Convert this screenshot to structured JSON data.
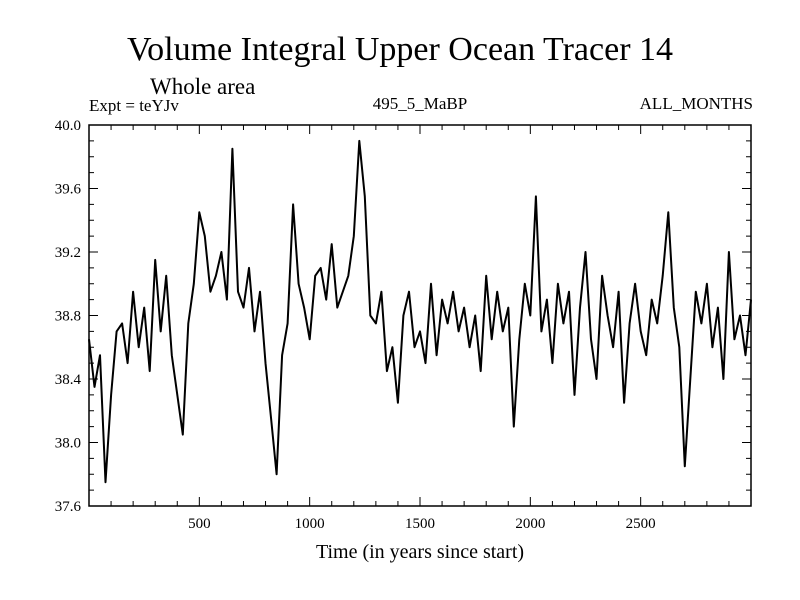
{
  "chart_data": {
    "type": "line",
    "title": "Volume Integral Upper Ocean Tracer 14",
    "subtitle": "Whole area",
    "experiment_label": "Expt = teYJv",
    "run_label": "495_5_MaBP",
    "months_label": "ALL_MONTHS",
    "xlabel": "Time (in years since start)",
    "ylabel": "",
    "xlim": [
      0,
      3000
    ],
    "ylim": [
      37.6,
      40.0
    ],
    "x_ticks": [
      500,
      1000,
      1500,
      2000,
      2500
    ],
    "x_tick_labels": [
      "500",
      "1000",
      "1500",
      "2000",
      "2500"
    ],
    "y_ticks": [
      37.6,
      38.0,
      38.4,
      38.8,
      39.2,
      39.6,
      40.0
    ],
    "y_tick_labels": [
      "37.6",
      "38.0",
      "38.4",
      "38.8",
      "39.2",
      "39.6",
      "40.0"
    ],
    "series": [
      {
        "name": "Upper Ocean Tracer 14",
        "x": [
          0,
          25,
          50,
          75,
          100,
          125,
          150,
          175,
          200,
          225,
          250,
          275,
          300,
          325,
          350,
          375,
          400,
          425,
          450,
          475,
          500,
          525,
          550,
          575,
          600,
          625,
          650,
          675,
          700,
          725,
          750,
          775,
          800,
          825,
          850,
          875,
          900,
          925,
          950,
          975,
          1000,
          1025,
          1050,
          1075,
          1100,
          1125,
          1150,
          1175,
          1200,
          1225,
          1250,
          1275,
          1300,
          1325,
          1350,
          1375,
          1400,
          1425,
          1450,
          1475,
          1500,
          1525,
          1550,
          1575,
          1600,
          1625,
          1650,
          1675,
          1700,
          1725,
          1750,
          1775,
          1800,
          1825,
          1850,
          1875,
          1900,
          1925,
          1950,
          1975,
          2000,
          2025,
          2050,
          2075,
          2100,
          2125,
          2150,
          2175,
          2200,
          2225,
          2250,
          2275,
          2300,
          2325,
          2350,
          2375,
          2400,
          2425,
          2450,
          2475,
          2500,
          2525,
          2550,
          2575,
          2600,
          2625,
          2650,
          2675,
          2700,
          2725,
          2750,
          2775,
          2800,
          2825,
          2850,
          2875,
          2900,
          2925,
          2950,
          2975,
          3000
        ],
        "values": [
          38.65,
          38.35,
          38.55,
          37.75,
          38.3,
          38.7,
          38.75,
          38.5,
          38.95,
          38.6,
          38.85,
          38.45,
          39.15,
          38.7,
          39.05,
          38.55,
          38.3,
          38.05,
          38.75,
          39.0,
          39.45,
          39.3,
          38.95,
          39.05,
          39.2,
          38.9,
          39.85,
          38.95,
          38.85,
          39.1,
          38.7,
          38.95,
          38.5,
          38.15,
          37.8,
          38.55,
          38.75,
          39.5,
          39.0,
          38.85,
          38.65,
          39.05,
          39.1,
          38.9,
          39.25,
          38.85,
          38.95,
          39.05,
          39.3,
          39.9,
          39.55,
          38.8,
          38.75,
          38.95,
          38.45,
          38.6,
          38.25,
          38.8,
          38.95,
          38.6,
          38.7,
          38.5,
          39.0,
          38.55,
          38.9,
          38.75,
          38.95,
          38.7,
          38.85,
          38.6,
          38.8,
          38.45,
          39.05,
          38.65,
          38.95,
          38.7,
          38.85,
          38.1,
          38.65,
          39.0,
          38.8,
          39.55,
          38.7,
          38.9,
          38.5,
          39.0,
          38.75,
          38.95,
          38.3,
          38.85,
          39.2,
          38.65,
          38.4,
          39.05,
          38.8,
          38.6,
          38.95,
          38.25,
          38.75,
          39.0,
          38.7,
          38.55,
          38.9,
          38.75,
          39.05,
          39.45,
          38.85,
          38.6,
          37.85,
          38.4,
          38.95,
          38.75,
          39.0,
          38.6,
          38.85,
          38.4,
          39.2,
          38.65,
          38.8,
          38.55,
          38.9
        ]
      }
    ]
  }
}
